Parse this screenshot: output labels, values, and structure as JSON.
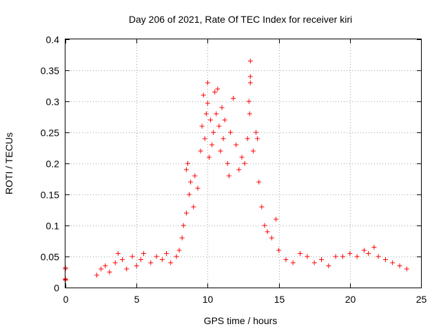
{
  "chart_data": {
    "type": "scatter",
    "title": "Day 206 of 2021, Rate Of TEC Index for receiver kiri",
    "xlabel": "GPS time / hours",
    "ylabel": "ROTI / TECUs",
    "xlim": [
      0,
      25
    ],
    "ylim": [
      0,
      0.4
    ],
    "xticks": [
      0,
      5,
      10,
      15,
      20,
      25
    ],
    "yticks": [
      0,
      0.05,
      0.1,
      0.15,
      0.2,
      0.25,
      0.3,
      0.35,
      0.4
    ],
    "grid": true,
    "marker": "+",
    "color": "#ff0000",
    "series": [
      {
        "name": "ROTI",
        "points": [
          [
            0.0,
            0.012
          ],
          [
            0.0,
            0.014
          ],
          [
            0.0,
            0.03
          ],
          [
            0.0,
            0.032
          ],
          [
            0.0,
            0.013
          ],
          [
            2.2,
            0.02
          ],
          [
            2.5,
            0.03
          ],
          [
            2.8,
            0.035
          ],
          [
            3.1,
            0.025
          ],
          [
            3.5,
            0.04
          ],
          [
            3.7,
            0.055
          ],
          [
            4.0,
            0.045
          ],
          [
            4.3,
            0.03
          ],
          [
            4.7,
            0.05
          ],
          [
            5.0,
            0.035
          ],
          [
            5.3,
            0.045
          ],
          [
            5.5,
            0.055
          ],
          [
            6.0,
            0.04
          ],
          [
            6.4,
            0.05
          ],
          [
            6.8,
            0.045
          ],
          [
            7.1,
            0.055
          ],
          [
            7.4,
            0.04
          ],
          [
            7.8,
            0.05
          ],
          [
            8.0,
            0.06
          ],
          [
            8.2,
            0.08
          ],
          [
            8.3,
            0.1
          ],
          [
            8.5,
            0.12
          ],
          [
            8.5,
            0.19
          ],
          [
            8.6,
            0.2
          ],
          [
            8.7,
            0.15
          ],
          [
            8.8,
            0.17
          ],
          [
            9.0,
            0.13
          ],
          [
            9.1,
            0.18
          ],
          [
            9.3,
            0.16
          ],
          [
            9.5,
            0.22
          ],
          [
            9.6,
            0.26
          ],
          [
            9.7,
            0.31
          ],
          [
            9.8,
            0.24
          ],
          [
            9.9,
            0.28
          ],
          [
            10.0,
            0.297
          ],
          [
            10.0,
            0.33
          ],
          [
            10.1,
            0.21
          ],
          [
            10.2,
            0.27
          ],
          [
            10.3,
            0.23
          ],
          [
            10.4,
            0.25
          ],
          [
            10.5,
            0.315
          ],
          [
            10.6,
            0.28
          ],
          [
            10.7,
            0.32
          ],
          [
            10.8,
            0.26
          ],
          [
            10.9,
            0.22
          ],
          [
            11.0,
            0.29
          ],
          [
            11.1,
            0.24
          ],
          [
            11.2,
            0.27
          ],
          [
            11.4,
            0.2
          ],
          [
            11.5,
            0.18
          ],
          [
            11.6,
            0.25
          ],
          [
            11.8,
            0.305
          ],
          [
            12.0,
            0.23
          ],
          [
            12.2,
            0.19
          ],
          [
            12.4,
            0.21
          ],
          [
            12.6,
            0.2
          ],
          [
            12.8,
            0.24
          ],
          [
            12.9,
            0.3
          ],
          [
            12.95,
            0.28
          ],
          [
            13.0,
            0.365
          ],
          [
            13.0,
            0.34
          ],
          [
            13.0,
            0.33
          ],
          [
            13.2,
            0.22
          ],
          [
            13.4,
            0.25
          ],
          [
            13.5,
            0.24
          ],
          [
            13.6,
            0.17
          ],
          [
            13.8,
            0.13
          ],
          [
            14.0,
            0.1
          ],
          [
            14.2,
            0.09
          ],
          [
            14.5,
            0.08
          ],
          [
            14.8,
            0.11
          ],
          [
            15.0,
            0.06
          ],
          [
            15.5,
            0.045
          ],
          [
            16.0,
            0.04
          ],
          [
            16.5,
            0.055
          ],
          [
            17.0,
            0.05
          ],
          [
            17.5,
            0.04
          ],
          [
            18.0,
            0.045
          ],
          [
            18.5,
            0.035
          ],
          [
            19.0,
            0.05
          ],
          [
            19.5,
            0.05
          ],
          [
            20.0,
            0.055
          ],
          [
            20.5,
            0.05
          ],
          [
            21.0,
            0.06
          ],
          [
            21.3,
            0.055
          ],
          [
            21.7,
            0.065
          ],
          [
            22.0,
            0.05
          ],
          [
            22.5,
            0.045
          ],
          [
            23.0,
            0.04
          ],
          [
            23.5,
            0.035
          ],
          [
            24.0,
            0.03
          ]
        ]
      }
    ]
  }
}
